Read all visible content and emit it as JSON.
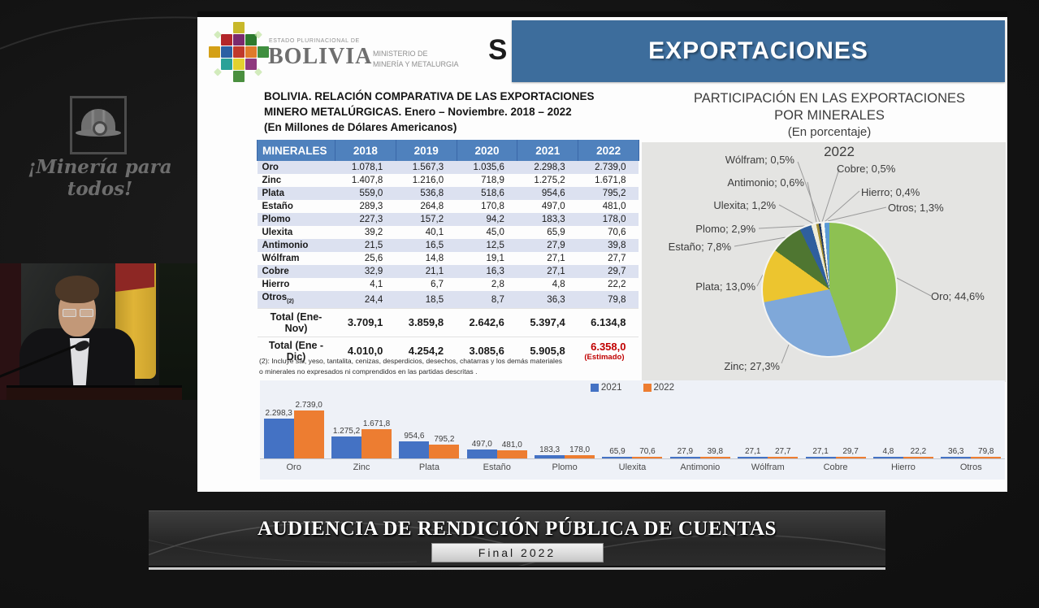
{
  "colors": {
    "banner_blue": "#3d6d9c",
    "table_header_blue": "#4f81bd",
    "table_alt_row": "#dce1f0",
    "estimate_red": "#c00000",
    "bar_2021_blue": "#4472c4",
    "bar_2022_orange": "#ed7d31"
  },
  "overlay": {
    "slogan": "¡Minería para todos!"
  },
  "slide": {
    "logo": {
      "estado": "ESTADO PLURINACIONAL DE",
      "country": "BOLIVIA",
      "ministry_line1": "MINISTERIO DE",
      "ministry_line2": "MINERÍA Y METALURGIA",
      "partial_letter": "S"
    },
    "header_banner": "EXPORTACIONES",
    "table_title_line1": "BOLIVIA. RELACIÓN COMPARATIVA DE LAS EXPORTACIONES",
    "table_title_line2": "MINERO METALÚRGICAS. Enero – Noviembre. 2018 – 2022",
    "table_title_line3": "(En Millones de Dólares Americanos)",
    "pie_title_line1": "PARTICIPACIÓN EN LAS EXPORTACIONES",
    "pie_title_line2": "POR MINERALES",
    "pie_subtitle": "(En porcentaje)",
    "footnote_line1": "(2): Incluye sal, yeso, tantalita, cenizas, desperdicios, desechos, chatarras y los demás materiales",
    "footnote_line2": "o minerales no expresados ni comprendidos en las partidas descritas ."
  },
  "footer": {
    "title": "AUDIENCIA DE RENDICIÓN PÚBLICA DE CUENTAS",
    "badge": "Final 2022"
  },
  "chart_data": [
    {
      "type": "table",
      "title": "BOLIVIA. RELACIÓN COMPARATIVA DE LAS EXPORTACIONES MINERO METALÚRGICAS. Enero – Noviembre. 2018 – 2022 (En Millones de Dólares Americanos)",
      "columns": [
        "MINERALES",
        "2018",
        "2019",
        "2020",
        "2021",
        "2022"
      ],
      "rows": [
        {
          "label": "Oro",
          "values": [
            "1.078,1",
            "1.567,3",
            "1.035,6",
            "2.298,3",
            "2.739,0"
          ]
        },
        {
          "label": "Zinc",
          "values": [
            "1.407,8",
            "1.216,0",
            "718,9",
            "1.275,2",
            "1.671,8"
          ]
        },
        {
          "label": "Plata",
          "values": [
            "559,0",
            "536,8",
            "518,6",
            "954,6",
            "795,2"
          ]
        },
        {
          "label": "Estaño",
          "values": [
            "289,3",
            "264,8",
            "170,8",
            "497,0",
            "481,0"
          ]
        },
        {
          "label": "Plomo",
          "values": [
            "227,3",
            "157,2",
            "94,2",
            "183,3",
            "178,0"
          ]
        },
        {
          "label": "Ulexita",
          "values": [
            "39,2",
            "40,1",
            "45,0",
            "65,9",
            "70,6"
          ]
        },
        {
          "label": "Antimonio",
          "values": [
            "21,5",
            "16,5",
            "12,5",
            "27,9",
            "39,8"
          ]
        },
        {
          "label": "Wólfram",
          "values": [
            "25,6",
            "14,8",
            "19,1",
            "27,1",
            "27,7"
          ]
        },
        {
          "label": "Cobre",
          "values": [
            "32,9",
            "21,1",
            "16,3",
            "27,1",
            "29,7"
          ]
        },
        {
          "label": "Hierro",
          "values": [
            "4,1",
            "6,7",
            "2,8",
            "4,8",
            "22,2"
          ]
        },
        {
          "label": "Otros",
          "label_sub": "(2)",
          "values": [
            "24,4",
            "18,5",
            "8,7",
            "36,3",
            "79,8"
          ]
        }
      ],
      "totals": [
        {
          "label": "Total (Ene-Nov)",
          "values": [
            "3.709,1",
            "3.859,8",
            "2.642,6",
            "5.397,4",
            "6.134,8"
          ]
        },
        {
          "label": "Total (Ene - Dic)",
          "values": [
            "4.010,0",
            "4.254,2",
            "3.085,6",
            "5.905,8",
            "6.358,0"
          ],
          "estimate_note": "(Estimado)"
        }
      ],
      "footnote": "(2): Incluye sal, yeso, tantalita, cenizas, desperdicios, desechos, chatarras y los demás materiales o minerales no expresados ni comprendidos en las partidas descritas ."
    },
    {
      "type": "pie",
      "title": "PARTICIPACIÓN EN LAS EXPORTACIONES POR MINERALES",
      "subtitle": "(En porcentaje)",
      "year": "2022",
      "legend_position": "labels-with-leader-lines",
      "slices": [
        {
          "label": "Oro",
          "value": 44.6,
          "display": "Oro; 44,6%",
          "color": "#8dc152"
        },
        {
          "label": "Zinc",
          "value": 27.3,
          "display": "Zinc; 27,3%",
          "color": "#7fa8d9"
        },
        {
          "label": "Plata",
          "value": 13.0,
          "display": "Plata; 13,0%",
          "color": "#ecc52f"
        },
        {
          "label": "Estaño",
          "value": 7.8,
          "display": "Estaño; 7,8%",
          "color": "#4f7631"
        },
        {
          "label": "Plomo",
          "value": 2.9,
          "display": "Plomo; 2,9%",
          "color": "#2f5f9e"
        },
        {
          "label": "Ulexita",
          "value": 1.2,
          "display": "Ulexita; 1,2%",
          "color": "#efecd8"
        },
        {
          "label": "Antimonio",
          "value": 0.6,
          "display": "Antimonio; 0,6%",
          "color": "#9f8c30"
        },
        {
          "label": "Wólfram",
          "value": 0.5,
          "display": "Wólfram; 0,5%",
          "color": "#1f3864"
        },
        {
          "label": "Cobre",
          "value": 0.5,
          "display": "Cobre; 0,5%",
          "color": "#f7f4e4"
        },
        {
          "label": "Hierro",
          "value": 0.4,
          "display": "Hierro; 0,4%",
          "color": "#fbfbf9"
        },
        {
          "label": "Otros",
          "value": 1.3,
          "display": "Otros; 1,3%",
          "color": "#5b9bd5"
        }
      ]
    },
    {
      "type": "bar",
      "categories": [
        "Oro",
        "Zinc",
        "Plata",
        "Estaño",
        "Plomo",
        "Ulexita",
        "Antimonio",
        "Wólfram",
        "Cobre",
        "Hierro",
        "Otros"
      ],
      "series": [
        {
          "name": "2021",
          "color": "#4472c4",
          "values": [
            2298.3,
            1275.2,
            954.6,
            497.0,
            183.3,
            65.9,
            27.9,
            27.1,
            27.1,
            4.8,
            36.3
          ],
          "labels": [
            "2.298,3",
            "1.275,2",
            "954,6",
            "497,0",
            "183,3",
            "65,9",
            "27,9",
            "27,1",
            "27,1",
            "4,8",
            "36,3"
          ]
        },
        {
          "name": "2022",
          "color": "#ed7d31",
          "values": [
            2739.0,
            1671.8,
            795.2,
            481.0,
            178.0,
            70.6,
            39.8,
            27.7,
            29.7,
            22.2,
            79.8
          ],
          "labels": [
            "2.739,0",
            "1.671,8",
            "795,2",
            "481,0",
            "178,0",
            "70,6",
            "39,8",
            "27,7",
            "29,7",
            "22,2",
            "79,8"
          ]
        }
      ],
      "ymax": 2739.0,
      "grid": false,
      "legend_position": "top-center"
    }
  ]
}
